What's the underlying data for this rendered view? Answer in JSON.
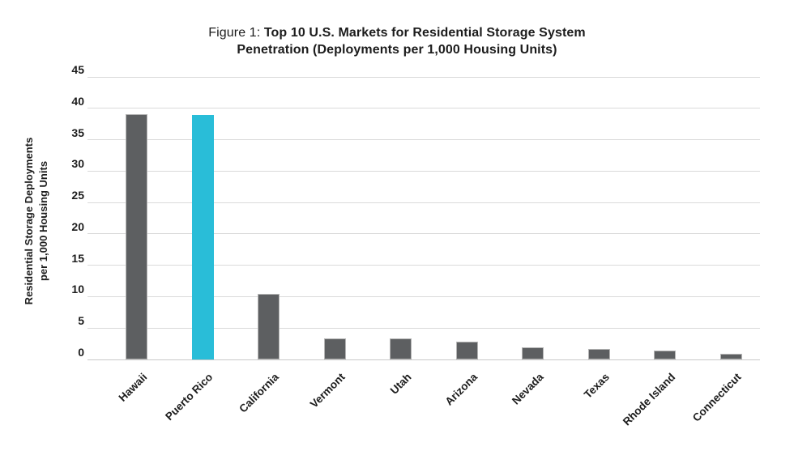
{
  "figure": {
    "title_prefix": "Figure 1: ",
    "title_line1_bold": "Top 10 U.S. Markets for Residential Storage System",
    "title_line2_bold": "Penetration (Deployments per 1,000 Housing Units)",
    "ylabel_line1": "Residential Storage Deployments",
    "ylabel_line2": "per 1,000 Housing Units"
  },
  "chart_data": {
    "type": "bar",
    "title": "Figure 1: Top 10 U.S. Markets for Residential Storage System Penetration (Deployments per 1,000 Housing Units)",
    "categories": [
      "Hawaii",
      "Puerto Rico",
      "California",
      "Vermont",
      "Utah",
      "Arizona",
      "Nevada",
      "Texas",
      "Rhode Island",
      "Connecticut"
    ],
    "values": [
      39.1,
      39.0,
      10.4,
      3.4,
      3.3,
      2.8,
      2.0,
      1.7,
      1.4,
      0.9
    ],
    "highlight_category": "Puerto Rico",
    "xlabel": "",
    "ylabel": "Residential Storage Deployments per 1,000 Housing Units",
    "ylim": [
      0,
      45
    ],
    "yticks": [
      0,
      5,
      10,
      15,
      20,
      25,
      30,
      35,
      40,
      45
    ],
    "grid": true,
    "legend": "none",
    "colors": {
      "bar": "#5d5f61",
      "highlight": "#29bdd8",
      "bar_border": "#b5b5b5",
      "gridline": "#dadada",
      "baseline": "#c8c8c8",
      "text": "#1c1c1c"
    }
  }
}
